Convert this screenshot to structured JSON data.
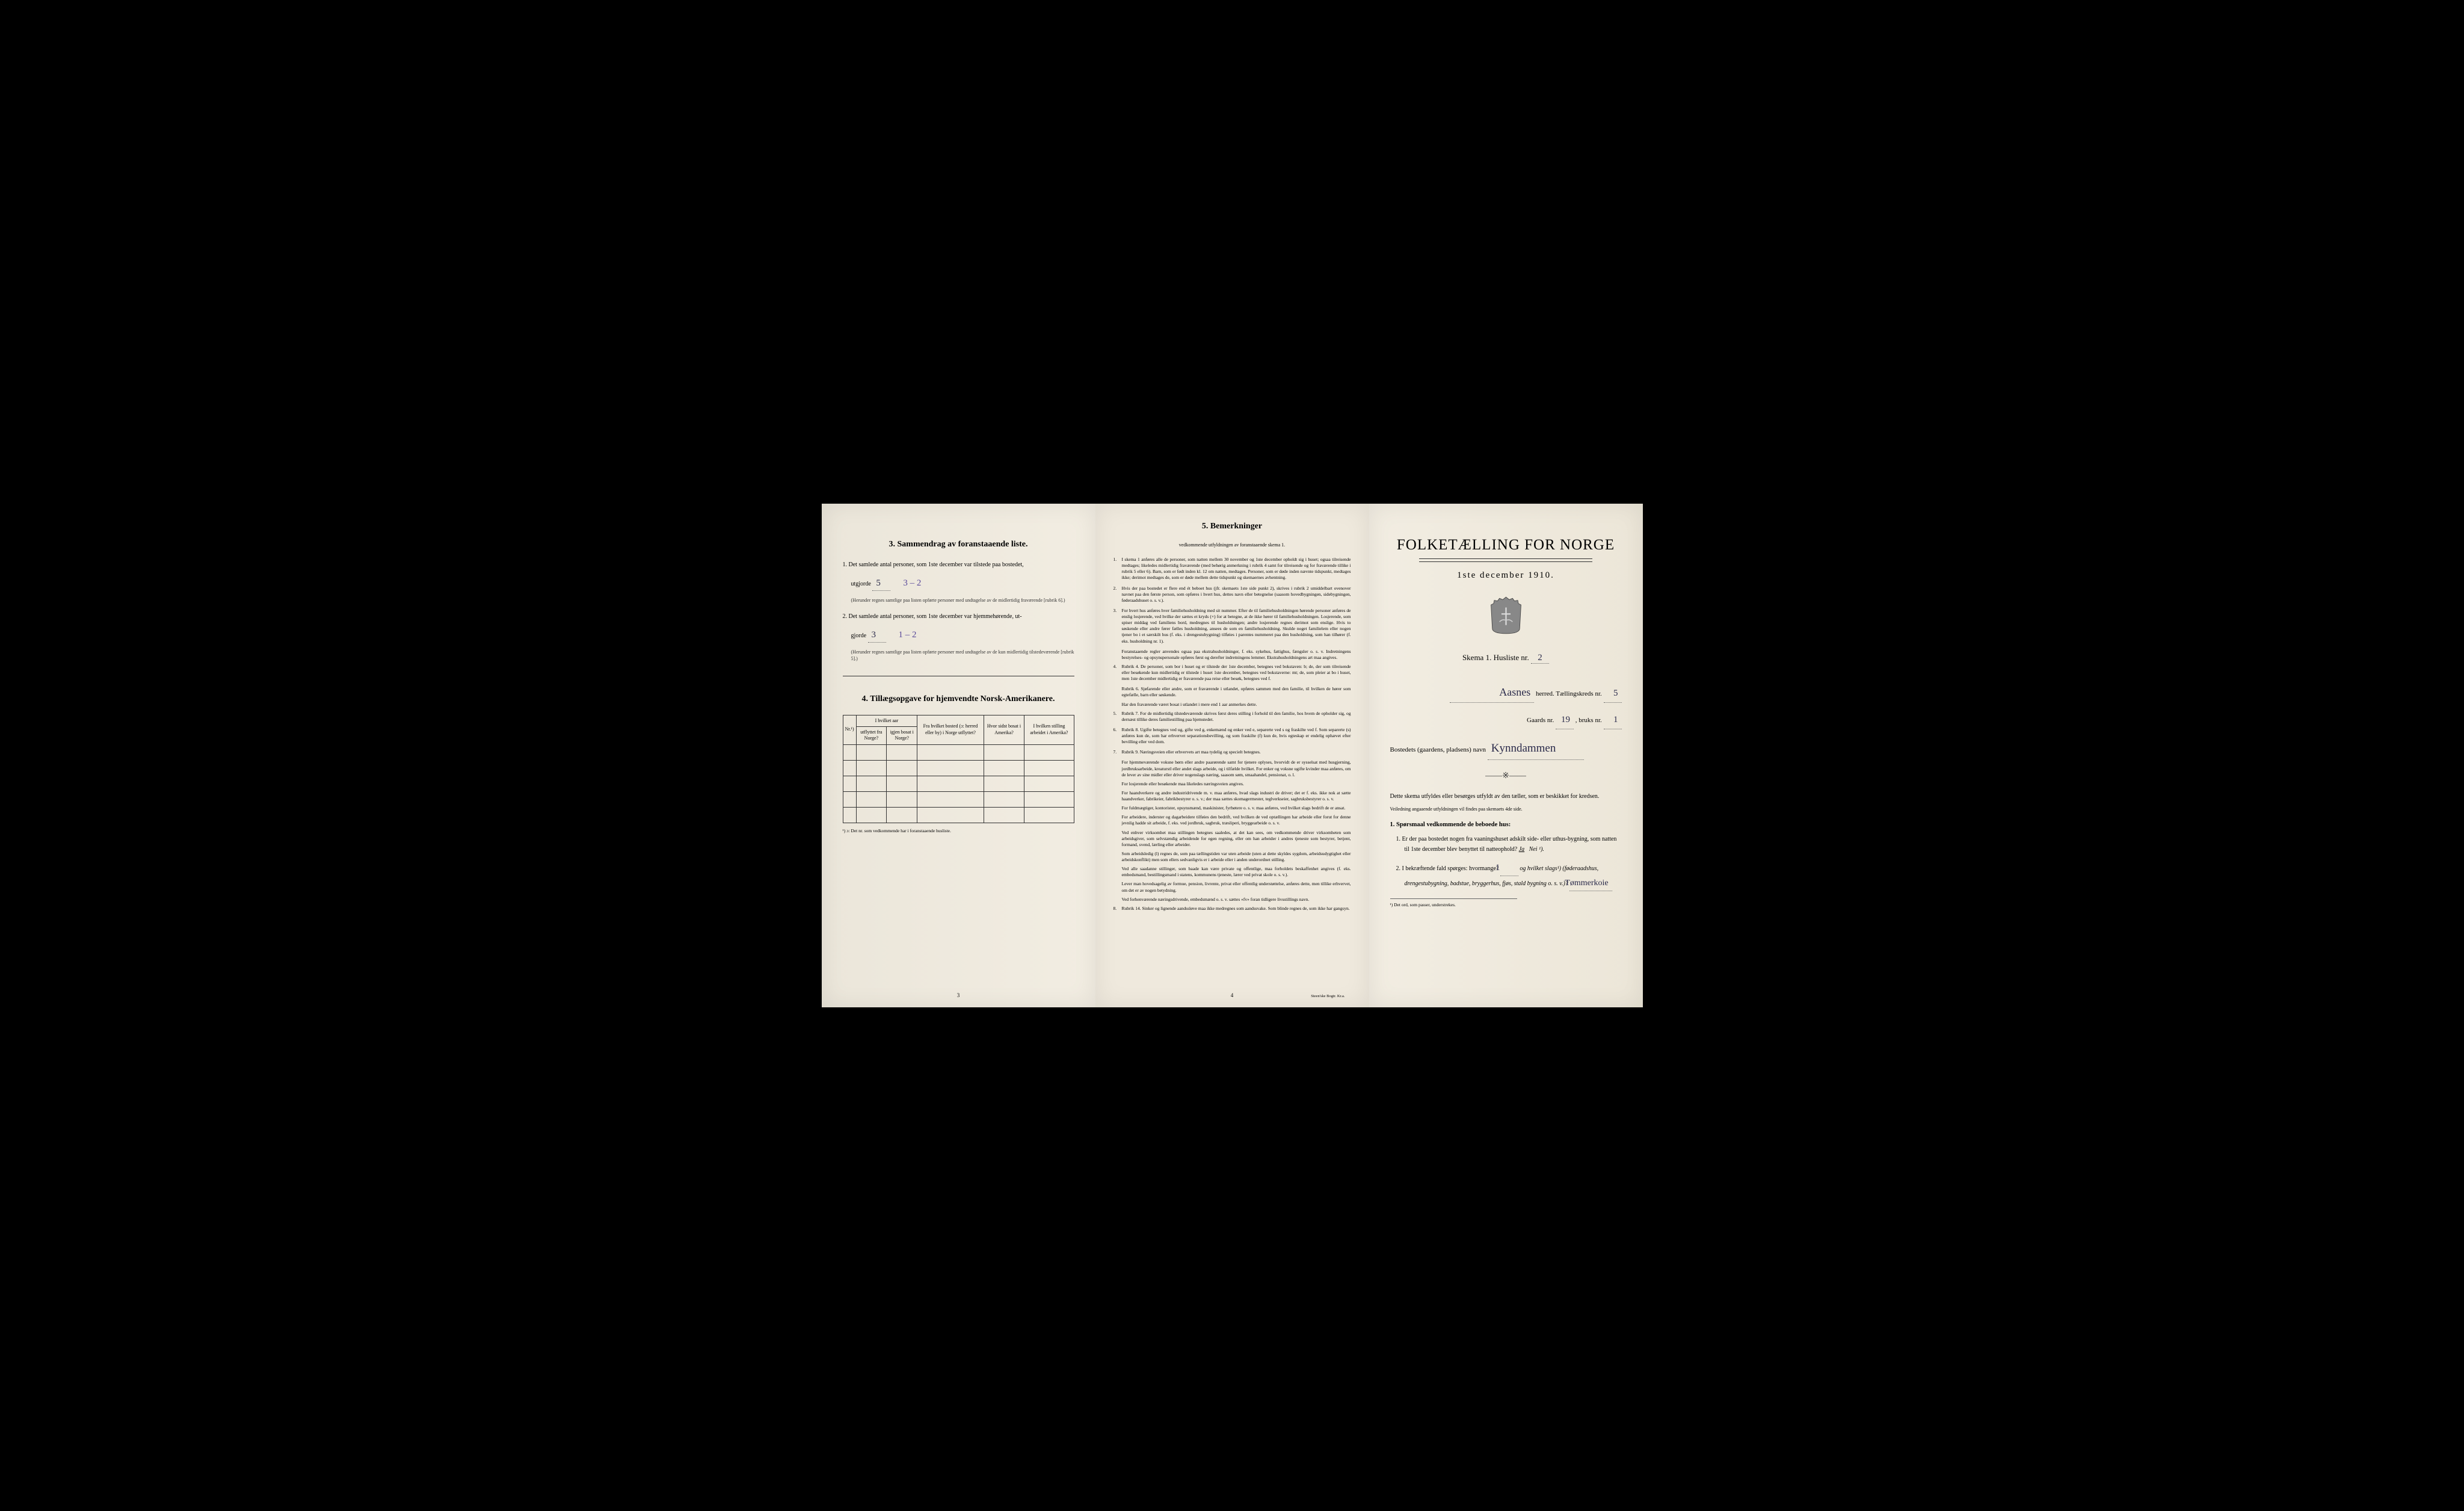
{
  "left": {
    "section3_title": "3.  Sammendrag av foranstaaende liste.",
    "q1_prefix": "1.  Det samlede antal personer, som 1ste december var tilstede paa bostedet,",
    "q1_word": "utgjorde",
    "q1_val": "5",
    "q1_extra": "3 – 2",
    "q1_note": "(Herunder regnes samtlige paa listen opførte personer med undtagelse av de midlertidig fraværende [rubrik 6].)",
    "q2_prefix": "2.  Det samlede antal personer, som 1ste december var hjemmehørende, ut-",
    "q2_word": "gjorde",
    "q2_val": "3",
    "q2_extra": "1 – 2",
    "q2_note": "(Herunder regnes samtlige paa listen opførte personer med undtagelse av de kun midlertidig tilstedeværende [rubrik 5].)",
    "section4_title": "4.  Tillægsopgave for hjemvendte Norsk-Amerikanere.",
    "th_nr": "Nr.¹)",
    "th_aar": "I hvilket aar",
    "th_utfl": "utflyttet fra Norge?",
    "th_igjen": "igjen bosat i Norge?",
    "th_bosted": "Fra hvilket bosted (ɔ: herred eller by) i Norge utflyttet?",
    "th_amerika": "Hvor sidst bosat i Amerika?",
    "th_stilling": "I hvilken stilling arbeidet i Amerika?",
    "footnote": "¹) ɔ: Det nr. som vedkommende har i foranstaaende husliste.",
    "pagenum": "3"
  },
  "middle": {
    "title": "5.  Bemerkninger",
    "subtitle": "vedkommende utfyldningen av foranstaaende skema 1.",
    "items": [
      {
        "n": "1.",
        "t": "I skema 1 anføres alle de personer, som natten mellem 30 november og 1ste december opholdt sig i huset; ogsaa tilreisende medtages; likeledes midlertidig fraværende (med behørig anmerkning i rubrik 4 samt for tilreisende og for fraværende tillike i rubrik 5 eller 6). Barn, som er født inden kl. 12 om natten, medtages. Personer, som er døde inden nævnte tidspunkt, medtages ikke; derimot medtages de, som er døde mellem dette tidspunkt og skemaernes avhentning."
      },
      {
        "n": "2.",
        "t": "Hvis der paa bostedet er flere end ét beboet hus (jfr. skemaets 1ste side punkt 2), skrives i rubrik 2 umiddelbart ovenover navnet paa den første person, som opføres i hvert hus, dettes navn eller betegnelse (saasom hovedbygningen, sidebygningen, føderaadshuset o. s. v.)."
      },
      {
        "n": "3.",
        "t": "For hvert hus anføres hver familiehusholdning med sit nummer. Efter de til familiehusholdningen hørende personer anføres de enslig losjerende, ved hvilke der sættes et kryds (×) for at betegne, at de ikke hører til familiehusholdningen. Losjerende, som spiser middag ved familiens bord, medregnes til husholdningen; andre losjerende regnes derimot som enslige. Hvis to søskende eller andre fører fælles husholdning, ansees de som en familiehusholdning. Skulde noget familielem eller nogen tjener bo i et særskilt hus (f. eks. i drengestubygning) tilføies i parentes nummeret paa den husholdning, som han tilhører (f. eks. husholdning nr. 1)."
      },
      {
        "n": "",
        "t": "Foranstaaende regler anvendes ogsaa paa ekstrahusholdninger, f. eks. sykehus, fattighus, fængsler o. s. v. Indretningens bestyrelses- og opsynspersonale opføres først og derefter indretningens lemmer. Ekstrahusholdningens art maa angives.",
        "sub": true
      },
      {
        "n": "4.",
        "t": "Rubrik 4. De personer, som bor i huset og er tilstede der 1ste december, betegnes ved bokstaven: b; de, der som tilreisende eller besøkende kun midlertidig er tilstede i huset 1ste december, betegnes ved bokstaverne: mt; de, som pleier at bo i huset, men 1ste december midlertidig er fraværende paa reise eller besøk, betegnes ved f."
      },
      {
        "n": "",
        "t": "Rubrik 6. Sjøfarende eller andre, som er fraværende i utlandet, opføres sammen med den familie, til hvilken de hører som egtefælle, barn eller søskende.",
        "sub": true
      },
      {
        "n": "",
        "t": "Har den fraværende været bosat i utlandet i mere end 1 aar anmerkes dette.",
        "sub": true
      },
      {
        "n": "5.",
        "t": "Rubrik 7. For de midlertidig tilstedeværende skrives først deres stilling i forhold til den familie, hos hvem de opholder sig, og dernæst tillike deres familiestilling paa hjemstedet."
      },
      {
        "n": "6.",
        "t": "Rubrik 8. Ugifte betegnes ved ug, gifte ved g, enkemænd og enker ved e, separerte ved s og fraskilte ved f. Som separerte (s) anføres kun de, som har erhvervet separationsbevilling, og som fraskilte (f) kun de, hvis egteskap er endelig ophævet efter bevilling eller ved dom."
      },
      {
        "n": "7.",
        "t": "Rubrik 9. Næringsveien eller erhvervets art maa tydelig og specielt betegnes."
      },
      {
        "n": "",
        "t": "For hjemmeværende voksne børn eller andre paarørende samt for tjenere oplyses, hvorvidt de er sysselsat med husgjerning, jordbruksarbeide, kreaturstl eller andet slags arbeide, og i tilfælde hvilket. For enker og voksne ugifte kvinder maa anføres, om de lever av sine midler eller driver nogenslags næring, saasom søm, smaahandel, pensionat, o. l.",
        "sub": true
      },
      {
        "n": "",
        "t": "For losjerende eller besøkende maa likeledes næringsveien angives.",
        "sub": true
      },
      {
        "n": "",
        "t": "For haandverkere og andre industridrivende m. v. maa anføres, hvad slags industri de driver; det er f. eks. ikke nok at sætte haandverker, fabrikeier, fabrikbestyrer o. s. v.; der maa sættes skomagermester, teglverkseier, sagbruksbestyrer o. s. v.",
        "sub": true
      },
      {
        "n": "",
        "t": "For fuldmægtiger, kontorister, opsynsmænd, maskinister, fyrbøtere o. s. v. maa anføres, ved hvilket slags bedrift de er ansat.",
        "sub": true
      },
      {
        "n": "",
        "t": "For arbeidere, inderster og dagarbeidere tilføies den bedrift, ved hvilken de ved optællingen har arbeide eller forut for denne jevnlig hadde sit arbeide, f. eks. ved jordbruk, sagbruk, træsliperi, bryggearbeide o. s. v.",
        "sub": true
      },
      {
        "n": "",
        "t": "Ved enhver virksomhet maa stillingen betegnes saaledes, at det kan sees, om vedkommende driver virksomheten som arbeidsgiver, som selvstændig arbeidende for egen regning, eller om han arbeider i andres tjeneste som bestyrer, betjent, formand, svend, lærling eller arbeider.",
        "sub": true
      },
      {
        "n": "",
        "t": "Som arbeidsledig (l) regnes de, som paa tællingstiden var uten arbeide (uten at dette skyldes sygdom, arbeidsudygtighet eller arbeidskonflikt) men som ellers sedvanligvis er i arbeide eller i anden underordnet stilling.",
        "sub": true
      },
      {
        "n": "",
        "t": "Ved alle saadanne stillinger, som baade kan være private og offentlige, maa forholdets beskaffenhet angives (f. eks. embedsmand, bestillingsmand i statens, kommunens tjeneste, lærer ved privat skole o. s. v.).",
        "sub": true
      },
      {
        "n": "",
        "t": "Lever man hovedsagelig av formue, pension, livrente, privat eller offentlig understøttelse, anføres dette, men tillike erhvervet, om det er av nogen betydning.",
        "sub": true
      },
      {
        "n": "",
        "t": "Ved forhenværende næringsdrivende, embedsmænd o. s. v. sættes «fv» foran tidligere livsstillings navn.",
        "sub": true
      },
      {
        "n": "8.",
        "t": "Rubrik 14. Sinker og lignende aandssløve maa ikke medregnes som aandssvake. Som blinde regnes de, som ikke har gangsyn."
      }
    ],
    "pagenum": "4",
    "printer": "Steen'ske Bogtr.  Kr.a."
  },
  "right": {
    "title": "FOLKETÆLLING FOR NORGE",
    "date": "1ste december 1910.",
    "skema": "Skema 1.  Husliste nr.",
    "husliste_nr": "2",
    "herred_val": "Aasnes",
    "herred_suffix": "herred.  Tællingskreds nr.",
    "kreds_nr": "5",
    "gaards_label": "Gaards nr.",
    "gaards_nr": "19",
    "bruks_label": ", bruks nr.",
    "bruks_nr": "1",
    "bosted_label": "Bostedets (gaardens, pladsens) navn",
    "bosted_val": "Kynndammen",
    "instr1": "Dette skema utfyldes eller besørges utfyldt av den tæller, som er beskikket for kredsen.",
    "instr2": "Veiledning angaaende utfyldningen vil findes paa skemaets 4de side.",
    "q_head": "1. Spørsmaal vedkommende de beboede hus:",
    "q1": "1.  Er der paa bostedet nogen fra vaaningshuset adskilt side- eller uthus-bygning, som natten til 1ste december blev benyttet til natteophold?   ",
    "q1_ja": "Ja",
    "q1_nei": "Nei ¹).",
    "q2": "2.  I bekræftende fald spørges: hvormange?",
    "q2_val": "1",
    "q2_rest": "og hvilket slags¹) (føderaadshus, drengestubygning, badstue, bryggerhus, fjøs, stald bygning o. s. v.)?  ",
    "q2_ans": "Tømmerkoie",
    "footnote": "¹) Det ord, som passer, understrekes."
  }
}
